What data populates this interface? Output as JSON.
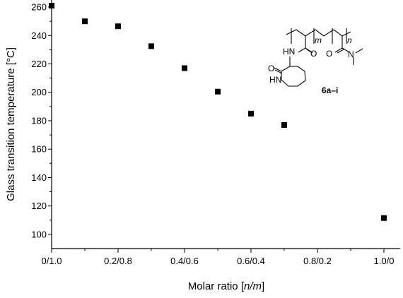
{
  "chart_data": {
    "type": "scatter",
    "xlabel_prefix": "Molar ratio [",
    "xlabel_var": "n/m",
    "xlabel_suffix": "]",
    "ylabel": "Glass transition temperature [°C]",
    "xlim": [
      0,
      1.0
    ],
    "ylim": [
      90,
      265
    ],
    "x_ticks": [
      0,
      0.2,
      0.4,
      0.6,
      0.8,
      1.0
    ],
    "x_tick_labels": [
      "0/1.0",
      "0.2/0.8",
      "0.4/0.6",
      "0.6/0.4",
      "0.8/0.2",
      "1.0/0"
    ],
    "y_ticks": [
      100,
      120,
      140,
      160,
      180,
      200,
      220,
      240,
      260
    ],
    "y_tick_labels": [
      "100",
      "120",
      "140",
      "160",
      "180",
      "200",
      "220",
      "240",
      "260"
    ],
    "points": [
      {
        "x": 0.0,
        "y": 261
      },
      {
        "x": 0.1,
        "y": 250
      },
      {
        "x": 0.2,
        "y": 246.5
      },
      {
        "x": 0.3,
        "y": 232.5
      },
      {
        "x": 0.4,
        "y": 217
      },
      {
        "x": 0.5,
        "y": 200.5
      },
      {
        "x": 0.6,
        "y": 185
      },
      {
        "x": 0.7,
        "y": 177
      },
      {
        "x": 1.0,
        "y": 111.5
      }
    ],
    "marker_color": "#000000",
    "grid": false
  },
  "structure": {
    "label": "6a–i",
    "sub_m": "m",
    "sub_n": "n",
    "hn_amide": "HN",
    "o_amide1": "O",
    "o_amide2": "O",
    "n_dimethyl": "N",
    "o_lactam": "O",
    "hn_lactam": "HN"
  }
}
